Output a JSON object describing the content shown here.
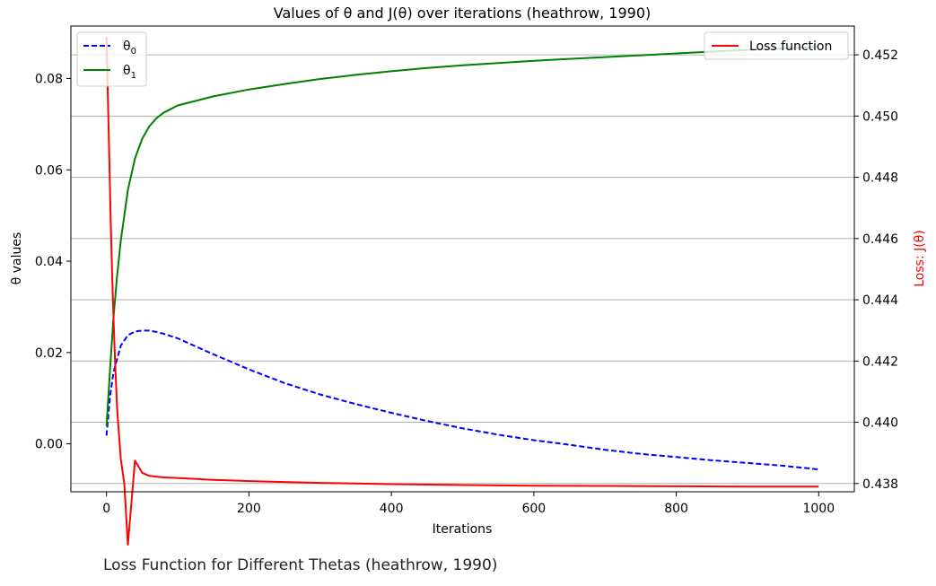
{
  "chart_data": {
    "type": "line",
    "title": "Values of θ and J(θ) over iterations (heathrow, 1990)",
    "xlabel": "Iterations",
    "ylabel_left": "θ values",
    "ylabel_right": "Loss: J(θ)",
    "xlim": [
      -50,
      1050
    ],
    "ylim_left": [
      -0.0105,
      0.0915
    ],
    "ylim_right": [
      0.43773,
      0.45294
    ],
    "xticks": [
      0,
      200,
      400,
      600,
      800,
      1000
    ],
    "xtick_labels": [
      "0",
      "200",
      "400",
      "600",
      "800",
      "1000"
    ],
    "yticks_left": [
      0.0,
      0.02,
      0.04,
      0.06,
      0.08
    ],
    "ytick_labels_left": [
      "0.00",
      "0.02",
      "0.04",
      "0.06",
      "0.08"
    ],
    "yticks_right": [
      0.438,
      0.44,
      0.442,
      0.444,
      0.446,
      0.448,
      0.45,
      0.452
    ],
    "ytick_labels_right": [
      "0.438",
      "0.440",
      "0.442",
      "0.444",
      "0.446",
      "0.448",
      "0.450",
      "0.452"
    ],
    "grid": "horizontal lines at right-axis ticks",
    "legend_left": "top-left",
    "legend_right": "top-right",
    "series": [
      {
        "name": "θ0",
        "axis": "left",
        "color": "#0000ff",
        "style": "dashed",
        "x": [
          0,
          5,
          10,
          20,
          30,
          40,
          50,
          60,
          70,
          80,
          100,
          150,
          200,
          250,
          300,
          350,
          400,
          450,
          500,
          550,
          600,
          650,
          700,
          750,
          800,
          850,
          900,
          950,
          1000
        ],
        "y": [
          0.0018,
          0.0105,
          0.0158,
          0.0215,
          0.0238,
          0.0246,
          0.0248,
          0.0248,
          0.0245,
          0.0241,
          0.0231,
          0.0196,
          0.0163,
          0.0133,
          0.0108,
          0.0087,
          0.0068,
          0.005,
          0.0034,
          0.002,
          0.0008,
          -0.0002,
          -0.0013,
          -0.0022,
          -0.0029,
          -0.0036,
          -0.0042,
          -0.0048,
          -0.0056
        ]
      },
      {
        "name": "θ1",
        "axis": "left",
        "color": "#008000",
        "style": "solid",
        "x": [
          0,
          5,
          10,
          15,
          20,
          30,
          40,
          50,
          60,
          70,
          80,
          100,
          150,
          200,
          250,
          300,
          350,
          400,
          450,
          500,
          550,
          600,
          650,
          700,
          750,
          800,
          850,
          900,
          950,
          1000
        ],
        "y": [
          0.0038,
          0.0165,
          0.028,
          0.037,
          0.0445,
          0.0556,
          0.0625,
          0.0668,
          0.0695,
          0.0713,
          0.0725,
          0.0741,
          0.0761,
          0.0776,
          0.0788,
          0.0799,
          0.0808,
          0.0816,
          0.0823,
          0.0829,
          0.0834,
          0.0839,
          0.0843,
          0.0847,
          0.0851,
          0.0855,
          0.0859,
          0.0863,
          0.0866,
          0.0869
        ]
      },
      {
        "name": "Loss function",
        "axis": "right",
        "color": "#ff0000",
        "style": "solid",
        "x": [
          0,
          2,
          4,
          6,
          8,
          10,
          12,
          15,
          20,
          25,
          30,
          40,
          50,
          60,
          80,
          100,
          150,
          200,
          300,
          400,
          500,
          600,
          700,
          800,
          900,
          1000
        ],
        "y": [
          0.4526,
          0.4505,
          0.4485,
          0.4465,
          0.4448,
          0.4433,
          0.442,
          0.4404,
          0.4388,
          0.438,
          0.436,
          0.43875,
          0.43835,
          0.43825,
          0.4382,
          0.43818,
          0.43812,
          0.43808,
          0.43802,
          0.43798,
          0.43795,
          0.43793,
          0.43792,
          0.43791,
          0.4379,
          0.4379
        ]
      }
    ]
  },
  "caption": "Loss Function for Different Thetas (heathrow, 1990)"
}
